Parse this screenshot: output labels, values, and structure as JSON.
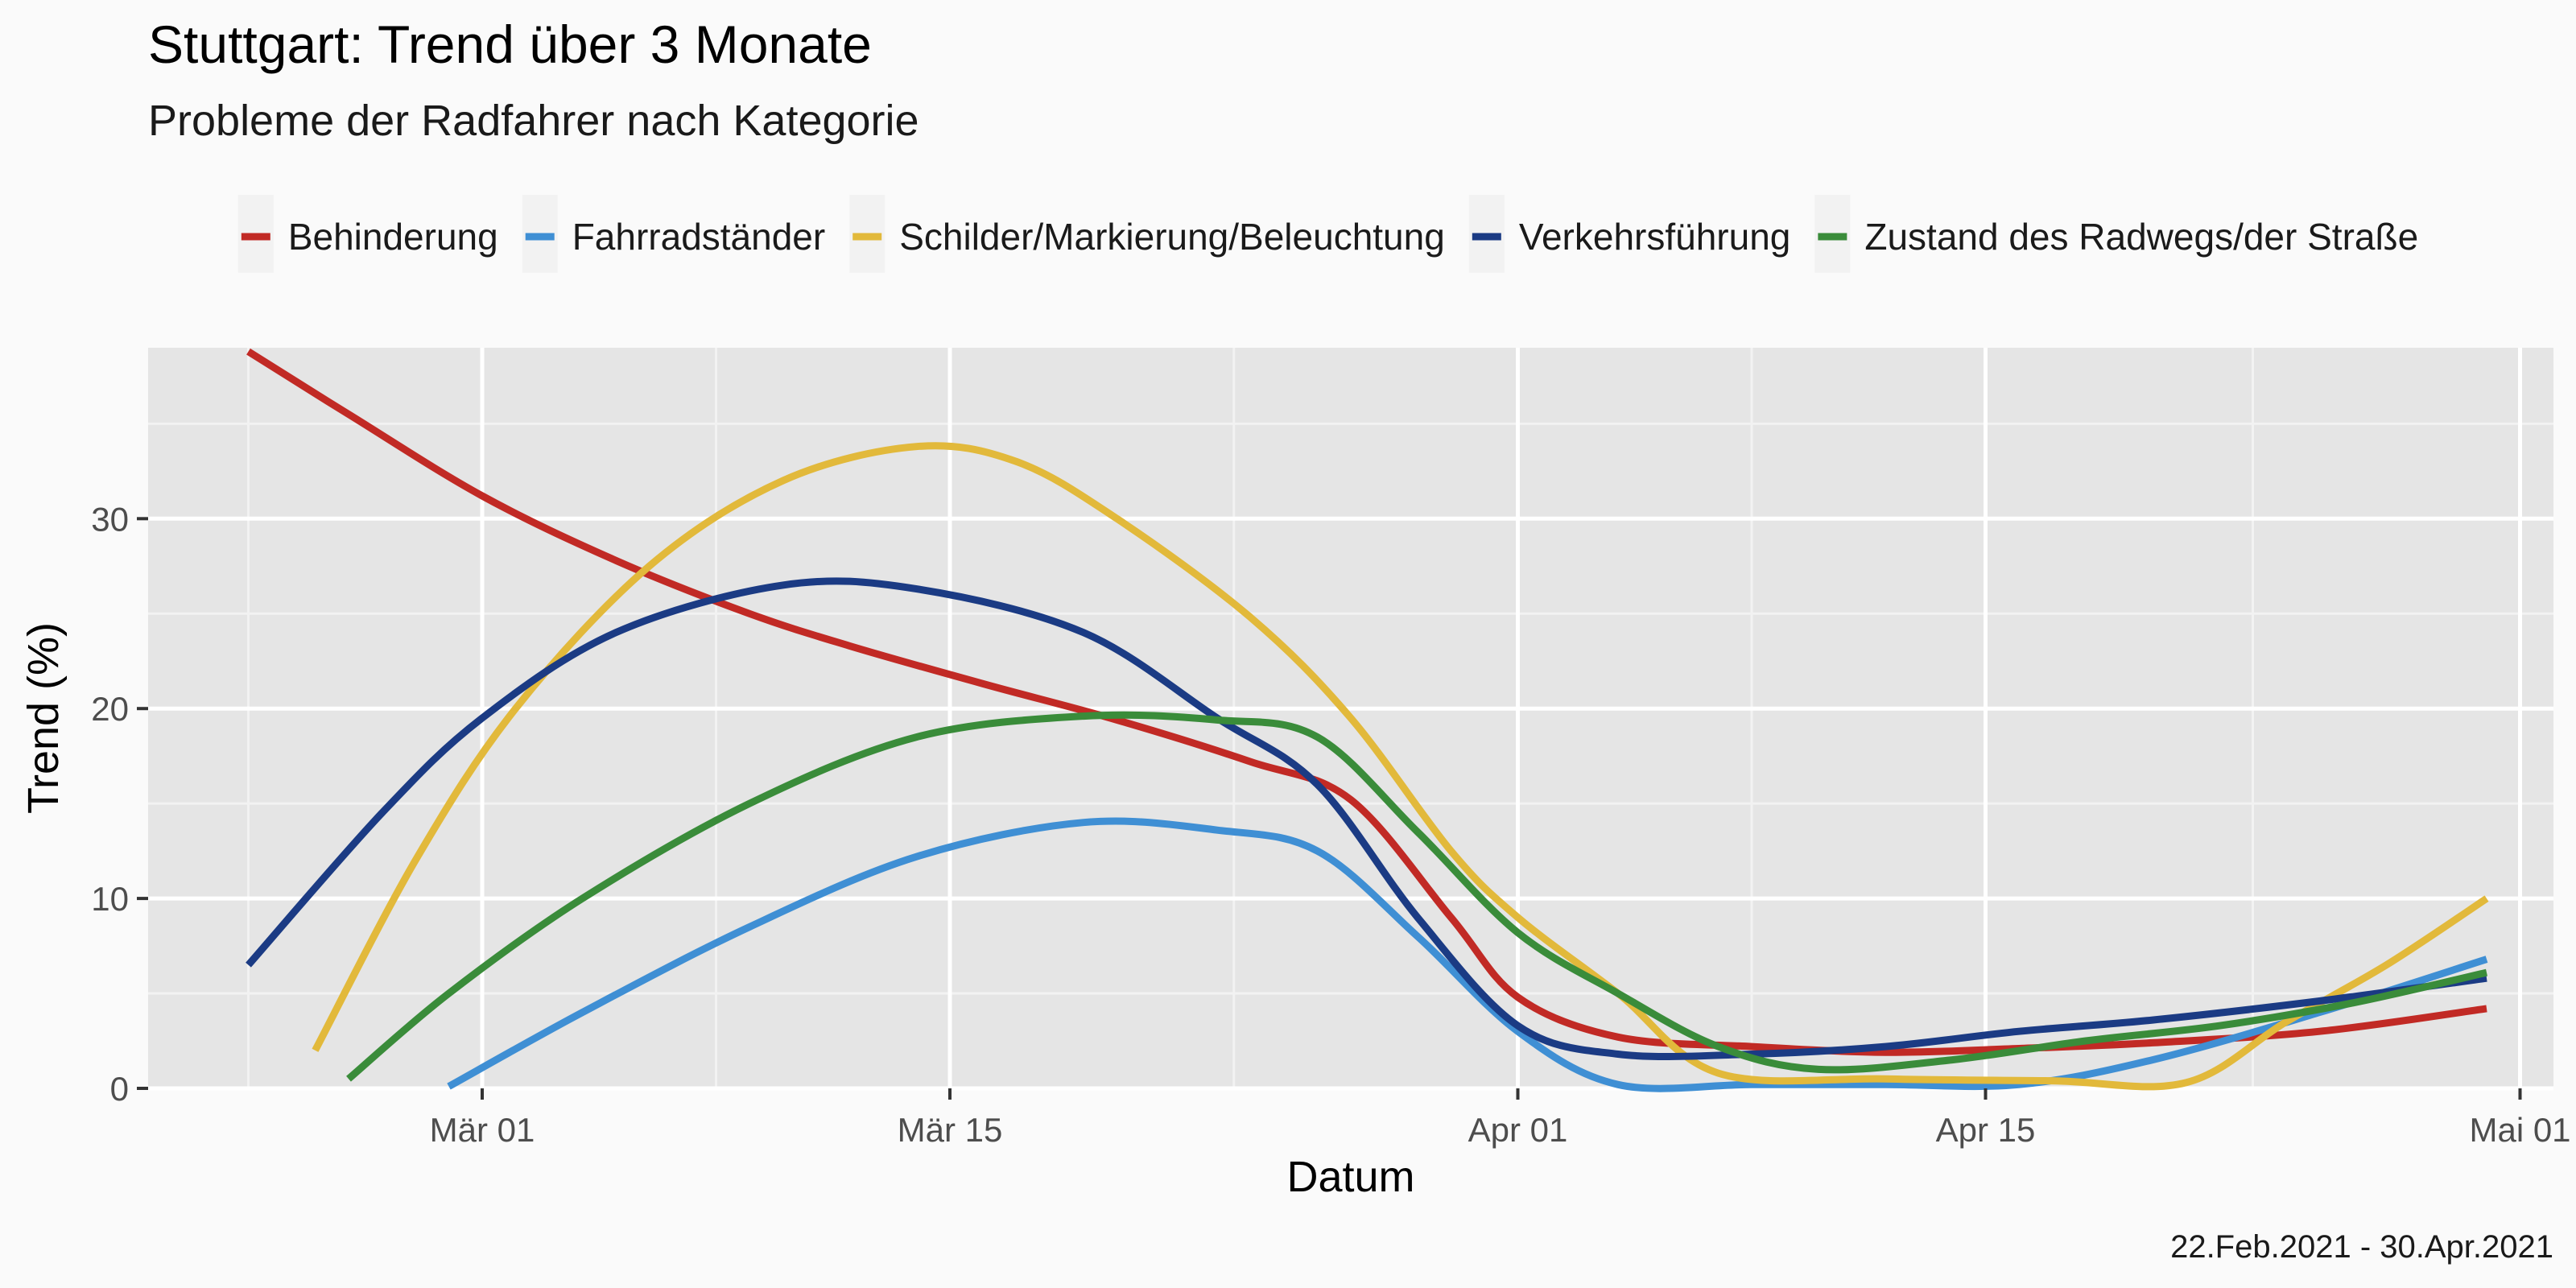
{
  "chart_data": {
    "type": "line",
    "title": "Stuttgart: Trend über 3 Monate",
    "subtitle": "Probleme der Radfahrer nach Kategorie",
    "caption": "22.Feb.2021 - 30.Apr.2021",
    "xlabel": "Datum",
    "ylabel": "Trend (%)",
    "x_axis_type": "date",
    "xlim": [
      "2021-02-19",
      "2021-05-02"
    ],
    "ylim": [
      0,
      39
    ],
    "x_ticks": [
      {
        "date": "2021-03-01",
        "label": "Mär 01"
      },
      {
        "date": "2021-03-15",
        "label": "Mär 15"
      },
      {
        "date": "2021-04-01",
        "label": "Apr 01"
      },
      {
        "date": "2021-04-15",
        "label": "Apr 15"
      },
      {
        "date": "2021-05-01",
        "label": "Mai 01"
      }
    ],
    "y_ticks": [
      0,
      10,
      20,
      30
    ],
    "grid": true,
    "legend_position": "top",
    "series": [
      {
        "name": "Behinderung",
        "color": "#c12a25",
        "points": [
          [
            "2021-02-22",
            38.8
          ],
          [
            "2021-02-25",
            35.5
          ],
          [
            "2021-03-01",
            31.2
          ],
          [
            "2021-03-05",
            27.8
          ],
          [
            "2021-03-09",
            25.0
          ],
          [
            "2021-03-12",
            23.3
          ],
          [
            "2021-03-16",
            21.3
          ],
          [
            "2021-03-20",
            19.4
          ],
          [
            "2021-03-24",
            17.2
          ],
          [
            "2021-03-27",
            15.2
          ],
          [
            "2021-03-30",
            9.0
          ],
          [
            "2021-04-01",
            4.8
          ],
          [
            "2021-04-04",
            2.7
          ],
          [
            "2021-04-08",
            2.2
          ],
          [
            "2021-04-12",
            1.9
          ],
          [
            "2021-04-16",
            2.1
          ],
          [
            "2021-04-20",
            2.4
          ],
          [
            "2021-04-25",
            3.0
          ],
          [
            "2021-04-30",
            4.2
          ]
        ]
      },
      {
        "name": "Fahrradständer",
        "color": "#3f8fd4",
        "points": [
          [
            "2021-02-28",
            0.1
          ],
          [
            "2021-03-04",
            4.0
          ],
          [
            "2021-03-09",
            8.5
          ],
          [
            "2021-03-14",
            12.2
          ],
          [
            "2021-03-19",
            14.0
          ],
          [
            "2021-03-23",
            13.6
          ],
          [
            "2021-03-26",
            12.5
          ],
          [
            "2021-03-29",
            8.0
          ],
          [
            "2021-04-01",
            3.0
          ],
          [
            "2021-04-04",
            0.2
          ],
          [
            "2021-04-08",
            0.2
          ],
          [
            "2021-04-12",
            0.2
          ],
          [
            "2021-04-16",
            0.2
          ],
          [
            "2021-04-20",
            1.5
          ],
          [
            "2021-04-25",
            4.0
          ],
          [
            "2021-04-30",
            6.8
          ]
        ]
      },
      {
        "name": "Schilder/Markierung/Beleuchtung",
        "color": "#e2b93b",
        "points": [
          [
            "2021-02-24",
            2.0
          ],
          [
            "2021-02-27",
            12.0
          ],
          [
            "2021-03-02",
            20.0
          ],
          [
            "2021-03-06",
            27.5
          ],
          [
            "2021-03-10",
            32.0
          ],
          [
            "2021-03-14",
            33.8
          ],
          [
            "2021-03-17",
            33.0
          ],
          [
            "2021-03-20",
            30.0
          ],
          [
            "2021-03-24",
            24.8
          ],
          [
            "2021-03-27",
            19.5
          ],
          [
            "2021-03-30",
            12.5
          ],
          [
            "2021-04-01",
            9.0
          ],
          [
            "2021-04-04",
            5.0
          ],
          [
            "2021-04-07",
            0.8
          ],
          [
            "2021-04-12",
            0.5
          ],
          [
            "2021-04-17",
            0.4
          ],
          [
            "2021-04-21",
            0.3
          ],
          [
            "2021-04-24",
            3.5
          ],
          [
            "2021-04-27",
            6.5
          ],
          [
            "2021-04-30",
            10.0
          ]
        ]
      },
      {
        "name": "Verkehrsführung",
        "color": "#1b3b84",
        "points": [
          [
            "2021-02-22",
            6.5
          ],
          [
            "2021-02-26",
            14.5
          ],
          [
            "2021-03-01",
            19.5
          ],
          [
            "2021-03-05",
            24.0
          ],
          [
            "2021-03-10",
            26.5
          ],
          [
            "2021-03-14",
            26.3
          ],
          [
            "2021-03-19",
            24.0
          ],
          [
            "2021-03-23",
            19.5
          ],
          [
            "2021-03-26",
            16.0
          ],
          [
            "2021-03-29",
            9.0
          ],
          [
            "2021-04-01",
            3.3
          ],
          [
            "2021-04-04",
            1.8
          ],
          [
            "2021-04-08",
            1.8
          ],
          [
            "2021-04-12",
            2.2
          ],
          [
            "2021-04-16",
            3.0
          ],
          [
            "2021-04-20",
            3.6
          ],
          [
            "2021-04-25",
            4.6
          ],
          [
            "2021-04-30",
            5.8
          ]
        ]
      },
      {
        "name": "Zustand des Radwegs/der Straße",
        "color": "#3a8c3a",
        "points": [
          [
            "2021-02-25",
            0.5
          ],
          [
            "2021-02-28",
            5.0
          ],
          [
            "2021-03-04",
            10.0
          ],
          [
            "2021-03-09",
            15.0
          ],
          [
            "2021-03-14",
            18.5
          ],
          [
            "2021-03-19",
            19.6
          ],
          [
            "2021-03-23",
            19.4
          ],
          [
            "2021-03-26",
            18.5
          ],
          [
            "2021-03-29",
            13.5
          ],
          [
            "2021-04-01",
            8.2
          ],
          [
            "2021-04-04",
            5.0
          ],
          [
            "2021-04-07",
            2.2
          ],
          [
            "2021-04-10",
            1.0
          ],
          [
            "2021-04-14",
            1.5
          ],
          [
            "2021-04-18",
            2.5
          ],
          [
            "2021-04-22",
            3.3
          ],
          [
            "2021-04-26",
            4.5
          ],
          [
            "2021-04-30",
            6.1
          ]
        ]
      }
    ]
  }
}
